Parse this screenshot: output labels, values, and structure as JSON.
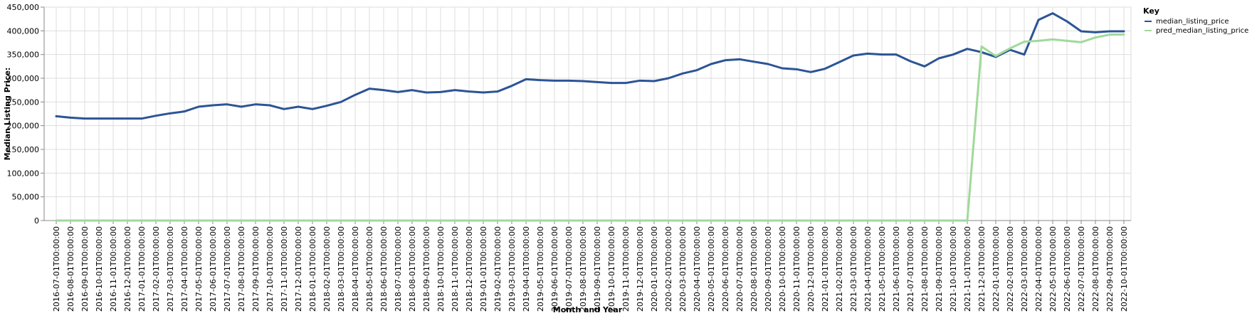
{
  "chart_data": {
    "type": "line",
    "title": "",
    "xlabel": "Month and Year",
    "ylabel": "Median Listing Price:",
    "ylim": [
      0,
      450000
    ],
    "yticks": [
      0,
      50000,
      100000,
      150000,
      200000,
      250000,
      300000,
      350000,
      400000,
      450000
    ],
    "ytick_labels": [
      "0",
      "50,000",
      "100,000",
      "150,000",
      "200,000",
      "250,000",
      "300,000",
      "350,000",
      "400,000",
      "450,000"
    ],
    "grid": true,
    "legend": {
      "title": "Key",
      "position": "top-right"
    },
    "x": [
      "2016-07-01T00:00:00",
      "2016-08-01T00:00:00",
      "2016-09-01T00:00:00",
      "2016-10-01T00:00:00",
      "2016-11-01T00:00:00",
      "2016-12-01T00:00:00",
      "2017-01-01T00:00:00",
      "2017-02-01T00:00:00",
      "2017-03-01T00:00:00",
      "2017-04-01T00:00:00",
      "2017-05-01T00:00:00",
      "2017-06-01T00:00:00",
      "2017-07-01T00:00:00",
      "2017-08-01T00:00:00",
      "2017-09-01T00:00:00",
      "2017-10-01T00:00:00",
      "2017-11-01T00:00:00",
      "2017-12-01T00:00:00",
      "2018-01-01T00:00:00",
      "2018-02-01T00:00:00",
      "2018-03-01T00:00:00",
      "2018-04-01T00:00:00",
      "2018-05-01T00:00:00",
      "2018-06-01T00:00:00",
      "2018-07-01T00:00:00",
      "2018-08-01T00:00:00",
      "2018-09-01T00:00:00",
      "2018-10-01T00:00:00",
      "2018-11-01T00:00:00",
      "2018-12-01T00:00:00",
      "2019-01-01T00:00:00",
      "2019-02-01T00:00:00",
      "2019-03-01T00:00:00",
      "2019-04-01T00:00:00",
      "2019-05-01T00:00:00",
      "2019-06-01T00:00:00",
      "2019-07-01T00:00:00",
      "2019-08-01T00:00:00",
      "2019-09-01T00:00:00",
      "2019-10-01T00:00:00",
      "2019-11-01T00:00:00",
      "2019-12-01T00:00:00",
      "2020-01-01T00:00:00",
      "2020-02-01T00:00:00",
      "2020-03-01T00:00:00",
      "2020-04-01T00:00:00",
      "2020-05-01T00:00:00",
      "2020-06-01T00:00:00",
      "2020-07-01T00:00:00",
      "2020-08-01T00:00:00",
      "2020-09-01T00:00:00",
      "2020-10-01T00:00:00",
      "2020-11-01T00:00:00",
      "2020-12-01T00:00:00",
      "2021-01-01T00:00:00",
      "2021-02-01T00:00:00",
      "2021-03-01T00:00:00",
      "2021-04-01T00:00:00",
      "2021-05-01T00:00:00",
      "2021-06-01T00:00:00",
      "2021-07-01T00:00:00",
      "2021-08-01T00:00:00",
      "2021-09-01T00:00:00",
      "2021-10-01T00:00:00",
      "2021-11-01T00:00:00",
      "2021-12-01T00:00:00",
      "2022-01-01T00:00:00",
      "2022-02-01T00:00:00",
      "2022-03-01T00:00:00",
      "2022-04-01T00:00:00",
      "2022-05-01T00:00:00",
      "2022-06-01T00:00:00",
      "2022-07-01T00:00:00",
      "2022-08-01T00:00:00",
      "2022-09-01T00:00:00",
      "2022-10-01T00:00:00"
    ],
    "series": [
      {
        "name": "median_listing_price",
        "color": "#2c5496",
        "values": [
          220000,
          217000,
          215000,
          215000,
          215000,
          215000,
          215000,
          221000,
          226000,
          230000,
          240000,
          243000,
          245000,
          240000,
          245000,
          243000,
          235000,
          240000,
          235000,
          242000,
          250000,
          265000,
          278000,
          275000,
          271000,
          275000,
          270000,
          271000,
          275000,
          272000,
          270000,
          272000,
          284000,
          298000,
          296000,
          295000,
          295000,
          294000,
          292000,
          290000,
          290000,
          295000,
          294000,
          300000,
          310000,
          317000,
          330000,
          338000,
          340000,
          335000,
          330000,
          321000,
          319000,
          313000,
          320000,
          334000,
          348000,
          352000,
          350000,
          350000,
          336000,
          325000,
          342000,
          350000,
          362000,
          355000,
          345000,
          360000,
          350000,
          423000,
          437000,
          420000,
          399000,
          397000,
          399000,
          399000
        ]
      },
      {
        "name": "pred_median_listing_price",
        "color": "#a0d99b",
        "values": [
          0,
          0,
          0,
          0,
          0,
          0,
          0,
          0,
          0,
          0,
          0,
          0,
          0,
          0,
          0,
          0,
          0,
          0,
          0,
          0,
          0,
          0,
          0,
          0,
          0,
          0,
          0,
          0,
          0,
          0,
          0,
          0,
          0,
          0,
          0,
          0,
          0,
          0,
          0,
          0,
          0,
          0,
          0,
          0,
          0,
          0,
          0,
          0,
          0,
          0,
          0,
          0,
          0,
          0,
          0,
          0,
          0,
          0,
          0,
          0,
          0,
          0,
          0,
          0,
          0,
          367000,
          347000,
          363000,
          377000,
          379000,
          382000,
          379000,
          376000,
          386000,
          392000,
          392000
        ]
      }
    ]
  }
}
